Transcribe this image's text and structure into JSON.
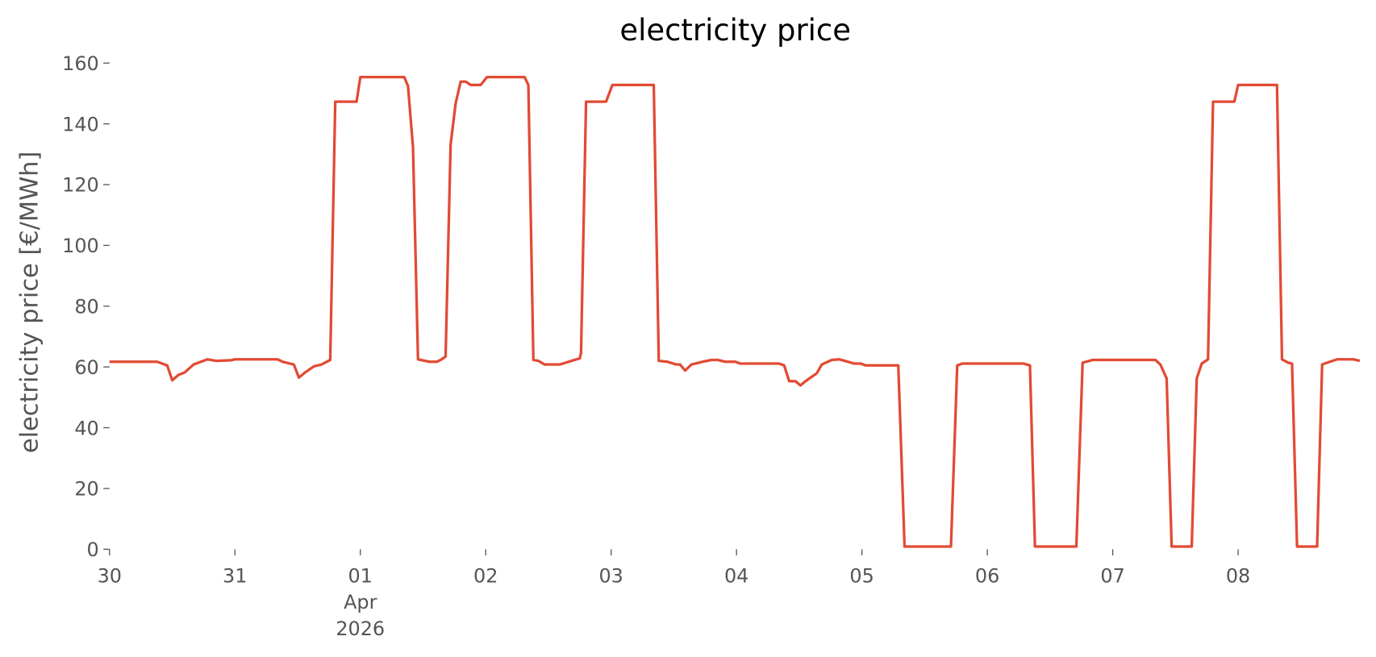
{
  "chart_data": {
    "type": "line",
    "title": "electricity price",
    "ylabel": "electricity price [€/MWh]",
    "xlim": [
      0,
      9.96
    ],
    "ylim": [
      0,
      160
    ],
    "xticks": [
      {
        "value": 0,
        "label": "30"
      },
      {
        "value": 1,
        "label": "31"
      },
      {
        "value": 2,
        "label": "01\nApr\n2026"
      },
      {
        "value": 3,
        "label": "02"
      },
      {
        "value": 4,
        "label": "03"
      },
      {
        "value": 5,
        "label": "04"
      },
      {
        "value": 6,
        "label": "05"
      },
      {
        "value": 7,
        "label": "06"
      },
      {
        "value": 8,
        "label": "07"
      },
      {
        "value": 9,
        "label": "08"
      }
    ],
    "yticks": [
      0,
      20,
      40,
      60,
      80,
      100,
      120,
      140,
      160
    ],
    "x": [
      0,
      0.38,
      0.46,
      0.5,
      0.55,
      0.6,
      0.67,
      0.78,
      0.85,
      0.97,
      1.0,
      1.34,
      1.38,
      1.47,
      1.51,
      1.56,
      1.63,
      1.69,
      1.76,
      1.8,
      1.97,
      2.0,
      2.35,
      2.38,
      2.42,
      2.46,
      2.55,
      2.61,
      2.64,
      2.68,
      2.72,
      2.76,
      2.8,
      2.84,
      2.88,
      2.96,
      3.01,
      3.31,
      3.34,
      3.38,
      3.42,
      3.47,
      3.59,
      3.66,
      3.75,
      3.76,
      3.8,
      3.96,
      4.01,
      4.34,
      4.38,
      4.45,
      4.52,
      4.55,
      4.59,
      4.64,
      4.73,
      4.8,
      4.85,
      4.91,
      4.99,
      5.03,
      5.34,
      5.38,
      5.42,
      5.47,
      5.51,
      5.55,
      5.64,
      5.68,
      5.76,
      5.82,
      5.89,
      5.94,
      5.99,
      6.03,
      6.29,
      6.34,
      6.71,
      6.76,
      6.8,
      7.29,
      7.34,
      7.38,
      7.71,
      7.76,
      7.84,
      8.34,
      8.38,
      8.43,
      8.47,
      8.63,
      8.67,
      8.71,
      8.76,
      8.8,
      8.97,
      9.0,
      9.31,
      9.35,
      9.4,
      9.43,
      9.47,
      9.63,
      9.67,
      9.71,
      9.79,
      9.92,
      9.97
    ],
    "series": [
      {
        "name": "electricity price",
        "color": "#e24a33",
        "values": [
          61.7,
          61.7,
          60.5,
          55.6,
          57.4,
          58.2,
          60.8,
          62.5,
          62,
          62.2,
          62.5,
          62.5,
          61.7,
          60.8,
          56.5,
          58.2,
          60.2,
          60.8,
          62.3,
          147.3,
          147.3,
          155.4,
          155.4,
          152.5,
          132.3,
          62.5,
          61.7,
          61.7,
          62.3,
          63.4,
          133.2,
          146.7,
          153.9,
          153.9,
          152.8,
          152.8,
          155.4,
          155.4,
          152.8,
          62.3,
          62,
          60.8,
          60.8,
          61.7,
          62.8,
          64.6,
          147.3,
          147.3,
          152.8,
          152.8,
          62,
          61.7,
          60.8,
          60.8,
          58.8,
          60.8,
          61.7,
          62.3,
          62.3,
          61.7,
          61.7,
          61.1,
          61.1,
          60.5,
          55.3,
          55.3,
          53.9,
          55.3,
          57.9,
          60.8,
          62.3,
          62.5,
          61.7,
          61.1,
          61.1,
          60.5,
          60.5,
          0.9,
          0.9,
          60.5,
          61.1,
          61.1,
          60.5,
          0.9,
          0.9,
          61.4,
          62.3,
          62.3,
          60.8,
          56.2,
          0.9,
          0.9,
          56.2,
          61.1,
          62.5,
          147.3,
          147.3,
          152.8,
          152.8,
          62.5,
          61.4,
          61.1,
          0.9,
          0.9,
          60.8,
          61.4,
          62.5,
          62.5,
          62
        ]
      }
    ]
  }
}
